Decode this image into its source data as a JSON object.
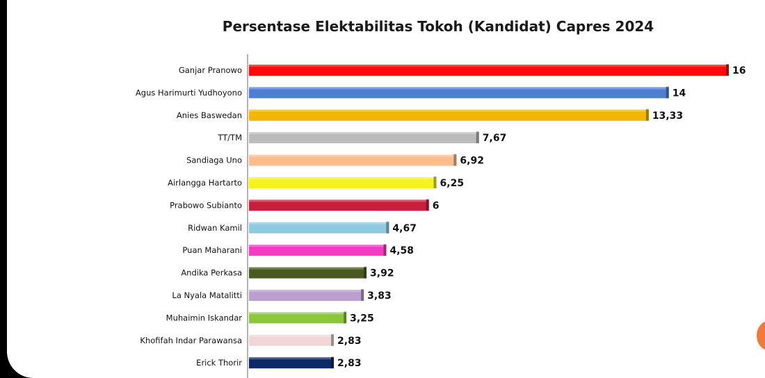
{
  "chart_data": {
    "type": "bar",
    "orientation": "horizontal",
    "title": "Persentase Elektabilitas Tokoh (Kandidat) Capres 2024",
    "xlim": [
      0,
      16
    ],
    "grid": false,
    "legend": "none",
    "categories": [
      "Ganjar Pranowo",
      "Agus Harimurti Yudhoyono",
      "Anies Baswedan",
      "TT/TM",
      "Sandiaga Uno",
      "Airlangga Hartarto",
      "Prabowo Subianto",
      "Ridwan Kamil",
      "Puan Maharani",
      "Andika Perkasa",
      "La Nyala Matalitti",
      "Muhaimin Iskandar",
      "Khofifah Indar Parawansa",
      "Erick Thorir"
    ],
    "values": [
      16,
      14,
      13.33,
      7.67,
      6.92,
      6.25,
      6,
      4.67,
      4.58,
      3.92,
      3.83,
      3.25,
      2.83,
      2.83
    ],
    "value_labels": [
      "16",
      "14",
      "13,33",
      "7,67",
      "6,92",
      "6,25",
      "6",
      "4,67",
      "4,58",
      "3,92",
      "3,83",
      "3,25",
      "2,83",
      "2,83"
    ],
    "colors": [
      "#ff0a0a",
      "#4f7fd0",
      "#f2b705",
      "#bcbcbc",
      "#fbbd8f",
      "#f7f21a",
      "#c8203c",
      "#8fcbe0",
      "#f53ac4",
      "#4a5a1e",
      "#b9a0d0",
      "#8cc641",
      "#f0d6d6",
      "#0d2a66"
    ]
  }
}
